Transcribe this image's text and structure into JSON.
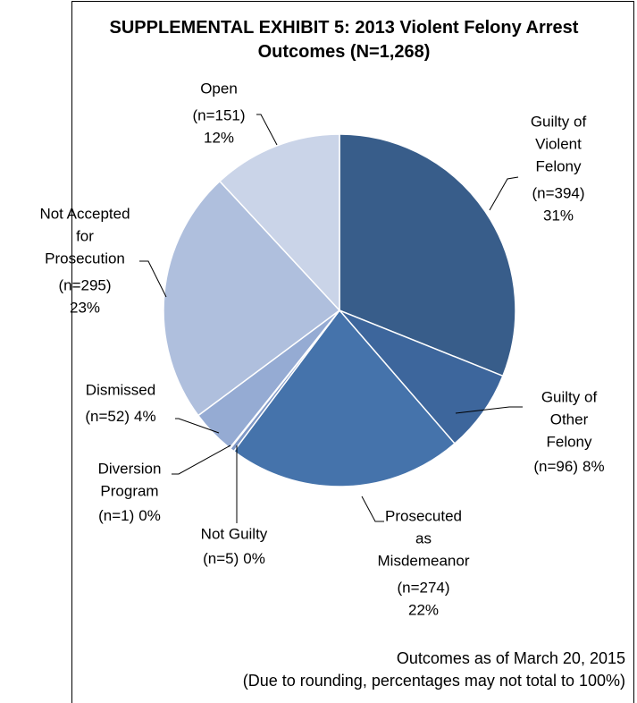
{
  "chart_data": {
    "type": "pie",
    "title": "SUPPLEMENTAL EXHIBIT 5: 2013 Violent Felony Arrest Outcomes (N=1,268)",
    "categories": [
      [
        "Guilty of",
        "Violent",
        "Felony"
      ],
      [
        "Guilty of",
        "Other",
        "Felony"
      ],
      [
        "Prosecuted",
        "as",
        "Misdemeanor"
      ],
      [
        "Not Guilty"
      ],
      [
        "Diversion",
        "Program"
      ],
      [
        "Dismissed"
      ],
      [
        "Not Accepted",
        "for",
        "Prosecution"
      ],
      [
        "Open"
      ]
    ],
    "values": [
      394,
      96,
      274,
      5,
      1,
      52,
      295,
      151
    ],
    "value_labels": [
      "(n=394)",
      "(n=96)",
      "(n=274)",
      "(n=5)",
      "(n=1)",
      "(n=52)",
      "(n=295)",
      "(n=151)"
    ],
    "percent_labels": [
      "31%",
      "8%",
      "22%",
      "0%",
      "0%",
      "4%",
      "23%",
      "12%"
    ],
    "colors": [
      "#385d8a",
      "#3d669c",
      "#4573ab",
      "#7f98c6",
      "#8aa1cc",
      "#95abd3",
      "#afbfdd",
      "#cad4e8"
    ],
    "notes": [
      "Outcomes as of March 20, 2015",
      "(Due to rounding, percentages may not total to 100%)"
    ]
  }
}
